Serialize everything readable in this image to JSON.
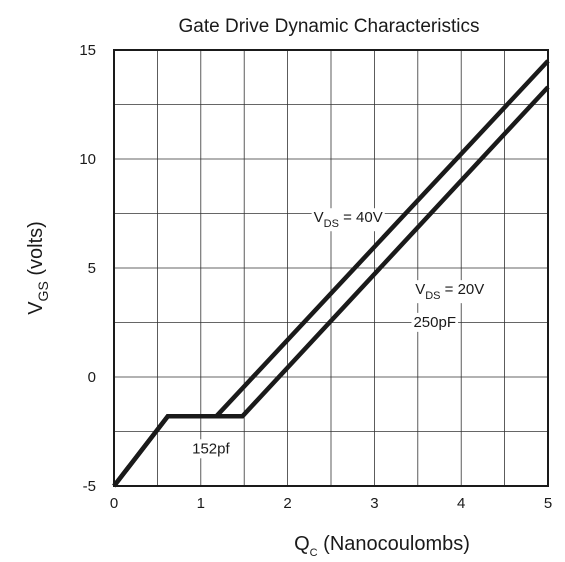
{
  "chart_data": {
    "type": "line",
    "title": "Gate Drive Dynamic Characteristics",
    "xlabel": {
      "main": "Q",
      "sub": "C",
      "rest": " (Nanocoulombs)"
    },
    "ylabel": {
      "main": "V",
      "sub": "GS",
      "rest": " (volts)"
    },
    "xlim": [
      0,
      5
    ],
    "ylim": [
      -5,
      15
    ],
    "xticks": [
      0,
      1,
      2,
      3,
      4,
      5
    ],
    "yticks": [
      -5,
      0,
      5,
      10,
      15
    ],
    "x_tick_labels": [
      "0",
      "1",
      "2",
      "3",
      "4",
      "5"
    ],
    "y_tick_labels": [
      "-5",
      "0",
      "5",
      "10",
      "15"
    ],
    "minor_grid_x_step": 0.5,
    "minor_grid_y_step": 2.5,
    "grid": true,
    "series": [
      {
        "points": [
          [
            0,
            -5
          ],
          [
            0.62,
            -1.8
          ],
          [
            1.18,
            -1.8
          ],
          [
            5,
            14.5
          ]
        ]
      },
      {
        "points": [
          [
            0,
            -5
          ],
          [
            0.62,
            -1.8
          ],
          [
            1.48,
            -1.8
          ],
          [
            5,
            13.3
          ]
        ]
      }
    ],
    "annotations": [
      {
        "main": "V",
        "sub": "DS",
        "rest": " = 40V",
        "x": 2.3,
        "y": 7.1
      },
      {
        "main": "V",
        "sub": "DS",
        "rest": " = 20V",
        "x": 3.47,
        "y": 3.8
      },
      {
        "text": "250pF",
        "x": 3.45,
        "y": 2.3
      },
      {
        "text": "152pf",
        "x": 0.9,
        "y": -3.5
      }
    ]
  }
}
